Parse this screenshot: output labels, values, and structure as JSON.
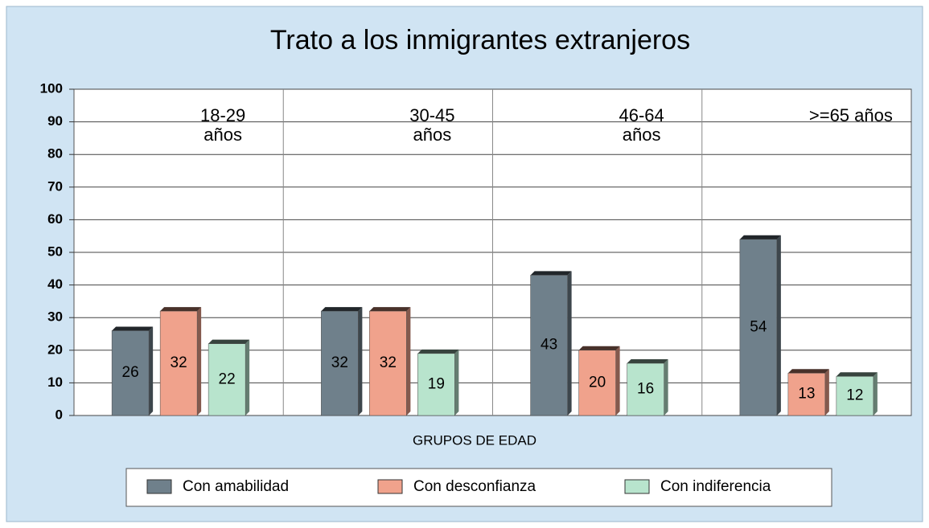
{
  "chart_data": {
    "type": "bar",
    "title": "Trato a los inmigrantes extranjeros",
    "x_label": "GRUPOS DE EDAD",
    "categories": [
      "18-29 años",
      "30-45 años",
      "46-64 años",
      ">=65 años"
    ],
    "series": [
      {
        "name": "Con amabilidad",
        "color": "#6f808b",
        "values": [
          26,
          32,
          43,
          54
        ]
      },
      {
        "name": "Con desconfianza",
        "color": "#f0a28c",
        "values": [
          32,
          32,
          20,
          13
        ]
      },
      {
        "name": "Con indiferencia",
        "color": "#b8e4cd",
        "values": [
          22,
          19,
          16,
          12
        ]
      }
    ],
    "ylim": [
      0,
      100
    ],
    "yticks": [
      0,
      10,
      20,
      30,
      40,
      50,
      60,
      70,
      80,
      90,
      100
    ],
    "grid": true,
    "legend": "bottom"
  }
}
